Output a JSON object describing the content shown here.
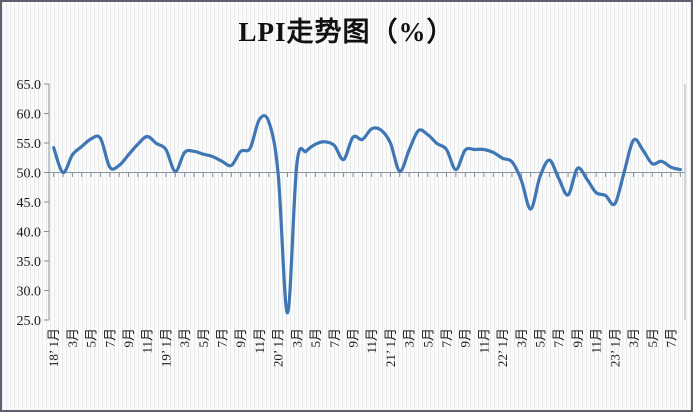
{
  "title": "LPI走势图（%）",
  "colors": {
    "line": "#3f76b4",
    "axis": "#8b96a0",
    "tick": "#7e8f9a",
    "plot_right_border": "#aab0b8",
    "text": "#1c1c1c",
    "background": "#fbfbf9",
    "frame_border": "#5f5f70"
  },
  "chart_data": {
    "type": "line",
    "title": "LPI走势图（%）",
    "legend": "none",
    "grid": "none",
    "smooth": true,
    "baseline": 50,
    "ylim": [
      25,
      65
    ],
    "y_tick_values": [
      65,
      60,
      55,
      50,
      45,
      40,
      35,
      30,
      25
    ],
    "y_tick_labels": [
      "65.0",
      "60.0",
      "55.0",
      "50.0",
      "45.0",
      "40.0",
      "35.0",
      "30.0",
      "25.0"
    ],
    "x": [
      "2018-01",
      "2018-02",
      "2018-03",
      "2018-04",
      "2018-05",
      "2018-06",
      "2018-07",
      "2018-08",
      "2018-09",
      "2018-10",
      "2018-11",
      "2018-12",
      "2019-01",
      "2019-02",
      "2019-03",
      "2019-04",
      "2019-05",
      "2019-06",
      "2019-07",
      "2019-08",
      "2019-09",
      "2019-10",
      "2019-11",
      "2019-12",
      "2020-01",
      "2020-02",
      "2020-03",
      "2020-04",
      "2020-05",
      "2020-06",
      "2020-07",
      "2020-08",
      "2020-09",
      "2020-10",
      "2020-11",
      "2020-12",
      "2021-01",
      "2021-02",
      "2021-03",
      "2021-04",
      "2021-05",
      "2021-06",
      "2021-07",
      "2021-08",
      "2021-09",
      "2021-10",
      "2021-11",
      "2021-12",
      "2022-01",
      "2022-02",
      "2022-03",
      "2022-04",
      "2022-05",
      "2022-06",
      "2022-07",
      "2022-08",
      "2022-09",
      "2022-10",
      "2022-11",
      "2022-12",
      "2023-01",
      "2023-02",
      "2023-03",
      "2023-04",
      "2023-05",
      "2023-06",
      "2023-07",
      "2023-08"
    ],
    "values": [
      54.2,
      50.0,
      53.0,
      54.4,
      55.7,
      55.8,
      50.9,
      51.2,
      53.0,
      54.8,
      56.1,
      54.9,
      53.9,
      50.2,
      53.4,
      53.6,
      53.1,
      52.7,
      51.9,
      51.2,
      53.6,
      54.1,
      59.0,
      58.6,
      49.9,
      26.2,
      51.5,
      53.6,
      54.8,
      55.2,
      54.6,
      52.2,
      56.0,
      55.6,
      57.4,
      57.2,
      55.0,
      50.2,
      53.8,
      57.1,
      56.4,
      54.9,
      53.9,
      50.5,
      53.8,
      53.9,
      53.9,
      53.4,
      52.4,
      51.8,
      48.7,
      43.8,
      49.3,
      52.1,
      49.0,
      46.2,
      50.7,
      48.9,
      46.6,
      46.1,
      44.7,
      50.1,
      55.5,
      53.8,
      51.5,
      51.9,
      50.9,
      50.5
    ],
    "x_tick_labels": [
      "18’ 1月",
      "3月",
      "5月",
      "7月",
      "9月",
      "11月",
      "19’ 1月",
      "3月",
      "5月",
      "7月",
      "9月",
      "11月",
      "20’ 1月",
      "3月",
      "5月",
      "7月",
      "9月",
      "11月",
      "21’ 1月",
      "3月",
      "5月",
      "7月",
      "9月",
      "11月",
      "22’ 1月",
      "3月",
      "5月",
      "7月",
      "9月",
      "11月",
      "23’ 1月",
      "3月",
      "5月",
      "7月"
    ],
    "x_tick_label_every": 2
  }
}
